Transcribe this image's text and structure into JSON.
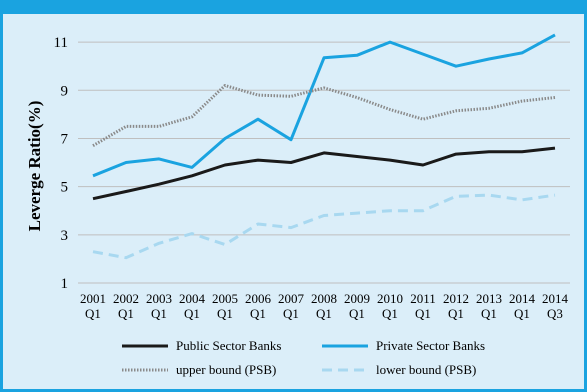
{
  "chart_data": {
    "type": "line",
    "title": "",
    "xlabel": "",
    "ylabel": "Leverge Ratio(%)",
    "ylim": [
      1,
      12
    ],
    "yticks": [
      1,
      3,
      5,
      7,
      9,
      11
    ],
    "grid": true,
    "legend_position": "bottom",
    "categories": [
      [
        "2001",
        "Q1"
      ],
      [
        "2002",
        "Q1"
      ],
      [
        "2003",
        "Q1"
      ],
      [
        "2004",
        "Q1"
      ],
      [
        "2005",
        "Q1"
      ],
      [
        "2006",
        "Q1"
      ],
      [
        "2007",
        "Q1"
      ],
      [
        "2008",
        "Q1"
      ],
      [
        "2009",
        "Q1"
      ],
      [
        "2010",
        "Q1"
      ],
      [
        "2011",
        "Q1"
      ],
      [
        "2012",
        "Q1"
      ],
      [
        "2013",
        "Q1"
      ],
      [
        "2014",
        "Q1"
      ],
      [
        "2014",
        "Q3"
      ]
    ],
    "series": [
      {
        "name": "Public Sector Banks",
        "style": "solid",
        "color": "#1a1a1a",
        "values": [
          4.5,
          4.8,
          5.1,
          5.45,
          5.9,
          6.1,
          6.0,
          6.4,
          6.25,
          6.1,
          5.9,
          6.35,
          6.45,
          6.45,
          6.6
        ]
      },
      {
        "name": "Private Sector Banks",
        "style": "solid",
        "color": "#1aa3e0",
        "values": [
          5.45,
          6.0,
          6.15,
          5.8,
          7.0,
          7.8,
          6.95,
          10.35,
          10.45,
          11.0,
          10.5,
          10.0,
          10.3,
          10.55,
          11.3
        ]
      },
      {
        "name": "upper bound (PSB)",
        "style": "dotted",
        "color": "#8a8a8a",
        "values": [
          6.7,
          7.5,
          7.5,
          7.9,
          9.2,
          8.8,
          8.75,
          9.1,
          8.7,
          8.2,
          7.8,
          8.15,
          8.25,
          8.55,
          8.7
        ]
      },
      {
        "name": "lower bound (PSB)",
        "style": "dashed",
        "color": "#a8d8f0",
        "values": [
          2.3,
          2.05,
          2.65,
          3.05,
          2.6,
          3.45,
          3.3,
          3.8,
          3.9,
          4.0,
          4.0,
          4.6,
          4.65,
          4.45,
          4.65
        ]
      }
    ]
  }
}
